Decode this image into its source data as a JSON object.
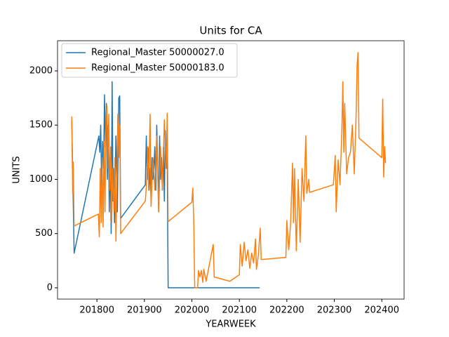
{
  "chart_data": {
    "type": "line",
    "title": "Units for CA",
    "x_label": "YEARWEEK",
    "y_label": "UNITS",
    "xlim": [
      201717,
      202447
    ],
    "ylim": [
      -104,
      2278
    ],
    "xticks": [
      201800,
      201900,
      202000,
      202100,
      202200,
      202300,
      202400
    ],
    "yticks": [
      0,
      500,
      1000,
      1500,
      2000
    ],
    "legend": "upper left",
    "series": [
      {
        "name": "Regional_Master 50000027.0",
        "color": "#1f77b4",
        "x": [
          201747,
          201752,
          201804,
          201806,
          201808,
          201810,
          201812,
          201814,
          201816,
          201818,
          201820,
          201822,
          201824,
          201826,
          201828,
          201830,
          201832,
          201834,
          201835,
          201837,
          201840,
          201843,
          201846,
          201848,
          201850,
          201902,
          201904,
          201906,
          201908,
          201910,
          201912,
          201914,
          201916,
          201918,
          201920,
          201922,
          201924,
          201926,
          201928,
          201930,
          201932,
          201934,
          201936,
          201938,
          201940,
          201942,
          201944,
          201946,
          201948,
          201950,
          202000,
          202050,
          202100,
          202143
        ],
        "values": [
          1540,
          320,
          1400,
          1250,
          1500,
          900,
          1350,
          1100,
          1780,
          1300,
          1700,
          1000,
          1500,
          700,
          1200,
          500,
          1900,
          800,
          1100,
          600,
          1400,
          700,
          1750,
          1770,
          640,
          950,
          1400,
          1000,
          1290,
          900,
          1100,
          800,
          1200,
          1000,
          1100,
          1300,
          900,
          1500,
          1100,
          700,
          1400,
          1000,
          1200,
          900,
          1300,
          800,
          1450,
          1100,
          1250,
          0,
          0,
          0,
          0,
          0
        ]
      },
      {
        "name": "Regional_Master 50000183.0",
        "color": "#ff7f0e",
        "x": [
          201747,
          201749,
          201750,
          201752,
          201803,
          201805,
          201807,
          201809,
          201811,
          201813,
          201815,
          201817,
          201819,
          201821,
          201823,
          201825,
          201827,
          201829,
          201831,
          201833,
          201836,
          201838,
          201840,
          201842,
          201844,
          201846,
          201848,
          201850,
          201902,
          201905,
          201907,
          201909,
          201912,
          201914,
          201918,
          201922,
          201926,
          201930,
          201934,
          201938,
          201942,
          201946,
          201948,
          201950,
          202000,
          202002,
          202004,
          202006,
          202012,
          202014,
          202017,
          202020,
          202023,
          202025,
          202030,
          202045,
          202047,
          202080,
          202100,
          202102,
          202106,
          202110,
          202114,
          202118,
          202122,
          202126,
          202130,
          202134,
          202136,
          202140,
          202144,
          202146,
          202198,
          202200,
          202204,
          202208,
          202212,
          202214,
          202216,
          202220,
          202224,
          202228,
          202232,
          202236,
          202240,
          202242,
          202246,
          202248,
          202298,
          202302,
          202304,
          202308,
          202312,
          202316,
          202318,
          202320,
          202322,
          202326,
          202330,
          202334,
          202338,
          202342,
          202346,
          202348,
          202350,
          202352,
          202400,
          202402,
          202404,
          202406,
          202408
        ],
        "values": [
          1580,
          870,
          1160,
          570,
          680,
          470,
          1100,
          600,
          1200,
          560,
          1350,
          700,
          1550,
          1680,
          1100,
          1600,
          900,
          1300,
          600,
          1100,
          700,
          1200,
          430,
          1000,
          1600,
          1200,
          1500,
          500,
          800,
          1000,
          1300,
          900,
          1600,
          750,
          1200,
          900,
          1400,
          700,
          1300,
          900,
          1550,
          1100,
          1610,
          610,
          790,
          920,
          600,
          0,
          0,
          160,
          100,
          160,
          50,
          170,
          60,
          400,
          100,
          60,
          120,
          400,
          200,
          420,
          250,
          350,
          180,
          320,
          230,
          450,
          170,
          300,
          550,
          260,
          280,
          620,
          350,
          600,
          1150,
          600,
          1100,
          340,
          1000,
          420,
          1100,
          800,
          1400,
          870,
          1000,
          880,
          950,
          1220,
          700,
          1180,
          950,
          1460,
          1900,
          1250,
          1700,
          1050,
          1200,
          1250,
          1500,
          1050,
          1600,
          2050,
          2170,
          1380,
          1200,
          1740,
          1020,
          1300,
          1150
        ]
      }
    ]
  }
}
